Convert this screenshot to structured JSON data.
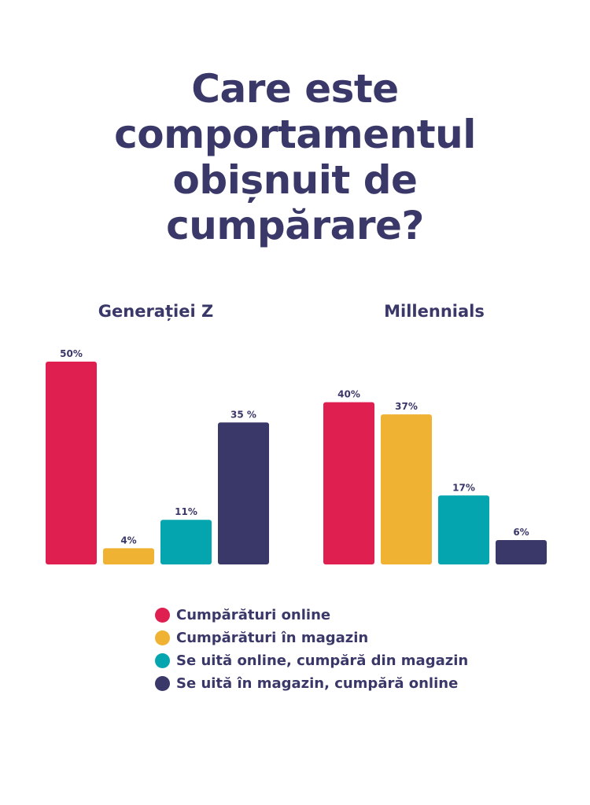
{
  "title_lines": [
    "Care este",
    "comportamentul",
    "obișnuit de",
    "cumpărare?"
  ],
  "colors": {
    "text": "#3a3868",
    "series": [
      "#e01f51",
      "#f0b232",
      "#04a5ae",
      "#3a3868"
    ]
  },
  "chart_data": {
    "type": "bar",
    "title": "Care este comportamentul obișnuit de cumpărare?",
    "ylim": [
      0,
      50
    ],
    "grid": false,
    "legend_position": "bottom",
    "series_names": [
      "Cumpărături online",
      "Cumpărături în magazin",
      "Se uită online, cumpără din magazin",
      "Se uită în magazin, cumpără online"
    ],
    "groups": [
      {
        "name": "Generației Z",
        "values": [
          50,
          4,
          11,
          35
        ],
        "labels": [
          "50%",
          "4%",
          "11%",
          "35 %"
        ]
      },
      {
        "name": "Millennials",
        "values": [
          40,
          37,
          17,
          6
        ],
        "labels": [
          "40%",
          "37%",
          "17%",
          "6%"
        ]
      }
    ]
  }
}
